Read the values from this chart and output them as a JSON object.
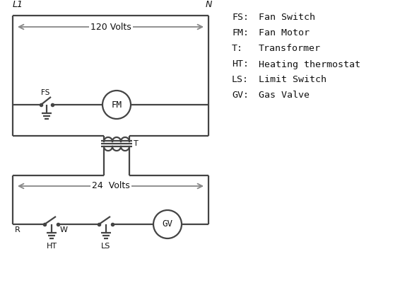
{
  "background_color": "#ffffff",
  "line_color": "#444444",
  "text_color": "#111111",
  "legend": {
    "FS": "Fan Switch",
    "FM": "Fan Motor",
    "T": "Transformer",
    "HT": "Heating thermostat",
    "LS": "Limit Switch",
    "GV": "Gas Valve"
  },
  "label_L1": "L1",
  "label_N": "N",
  "label_120V": "120 Volts",
  "label_24V": "24  Volts",
  "label_T": "T",
  "arrow_color": "#888888"
}
